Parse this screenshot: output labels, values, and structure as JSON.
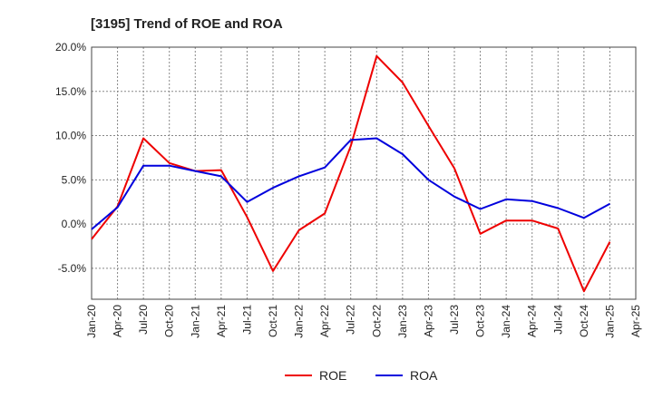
{
  "chart_data": {
    "type": "line",
    "title": "[3195]  Trend of ROE and ROA",
    "x": [
      "Jan-20",
      "Apr-20",
      "Jul-20",
      "Oct-20",
      "Jan-21",
      "Apr-21",
      "Jul-21",
      "Oct-21",
      "Jan-22",
      "Apr-22",
      "Jul-22",
      "Oct-22",
      "Jan-23",
      "Apr-23",
      "Jul-23",
      "Oct-23",
      "Jan-24",
      "Apr-24",
      "Jul-24",
      "Oct-24",
      "Jan-25",
      "Apr-25"
    ],
    "y_ticks": [
      "20.0%",
      "15.0%",
      "10.0%",
      "5.0%",
      "0.0%",
      "-5.0%"
    ],
    "y_tick_values": [
      20,
      15,
      10,
      5,
      0,
      -5
    ],
    "ylim": [
      -8.5,
      20
    ],
    "grid": true,
    "legend_position": "bottom-center",
    "series": [
      {
        "name": "ROE",
        "color": "#ee0000",
        "values": [
          -1.7,
          2.0,
          9.7,
          6.9,
          6.0,
          6.1,
          0.8,
          -5.3,
          -0.7,
          1.2,
          8.8,
          19.0,
          16.0,
          11.1,
          6.3,
          -1.1,
          0.4,
          0.4,
          -0.5,
          -7.6,
          -2.0,
          null
        ]
      },
      {
        "name": "ROA",
        "color": "#0000dd",
        "values": [
          -0.6,
          1.9,
          6.6,
          6.6,
          6.0,
          5.4,
          2.5,
          4.1,
          5.4,
          6.4,
          9.5,
          9.7,
          7.9,
          5.0,
          3.1,
          1.7,
          2.8,
          2.6,
          1.8,
          0.7,
          2.3,
          null
        ]
      }
    ]
  }
}
